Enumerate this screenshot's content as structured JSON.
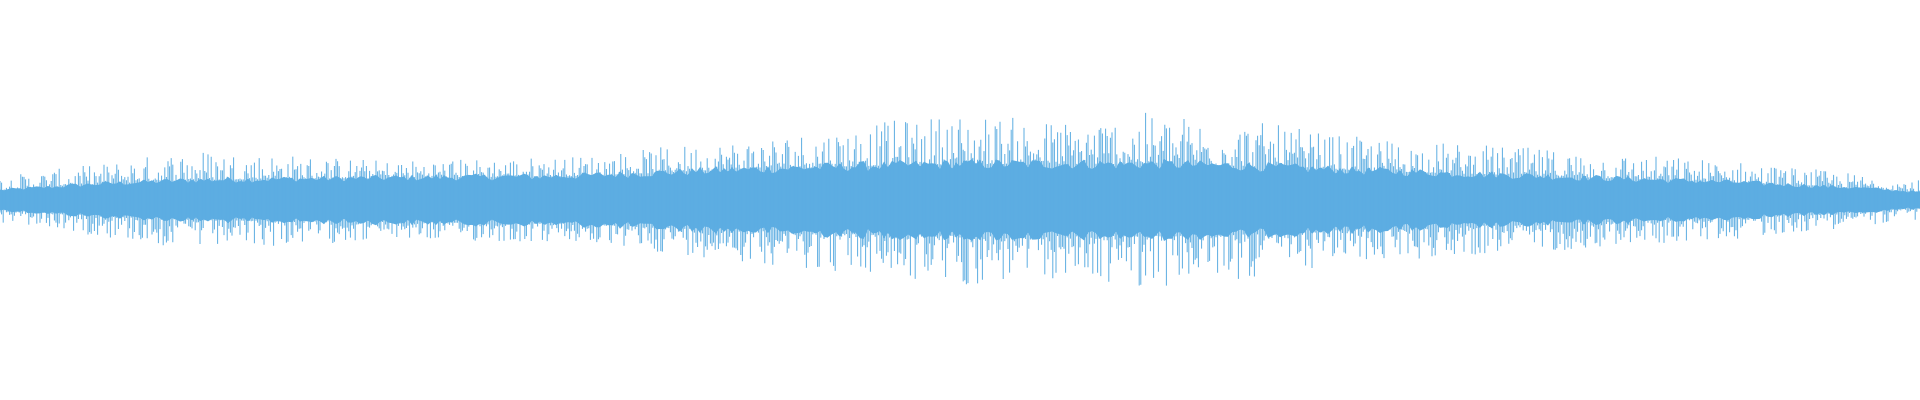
{
  "waveform": {
    "color": "#5dade2",
    "background": "#ffffff",
    "envelope": {
      "time_fraction": [
        0,
        0.05,
        0.1,
        0.2,
        0.3,
        0.38,
        0.45,
        0.5,
        0.55,
        0.6,
        0.65,
        0.7,
        0.8,
        0.9,
        0.97,
        1
      ],
      "body_amplitude": [
        0.05,
        0.08,
        0.1,
        0.11,
        0.12,
        0.15,
        0.17,
        0.18,
        0.18,
        0.18,
        0.17,
        0.15,
        0.12,
        0.09,
        0.06,
        0.04
      ],
      "peak_amplitude": [
        0.12,
        0.18,
        0.26,
        0.2,
        0.22,
        0.3,
        0.38,
        0.44,
        0.4,
        0.44,
        0.4,
        0.32,
        0.26,
        0.2,
        0.13,
        0.1
      ]
    }
  }
}
